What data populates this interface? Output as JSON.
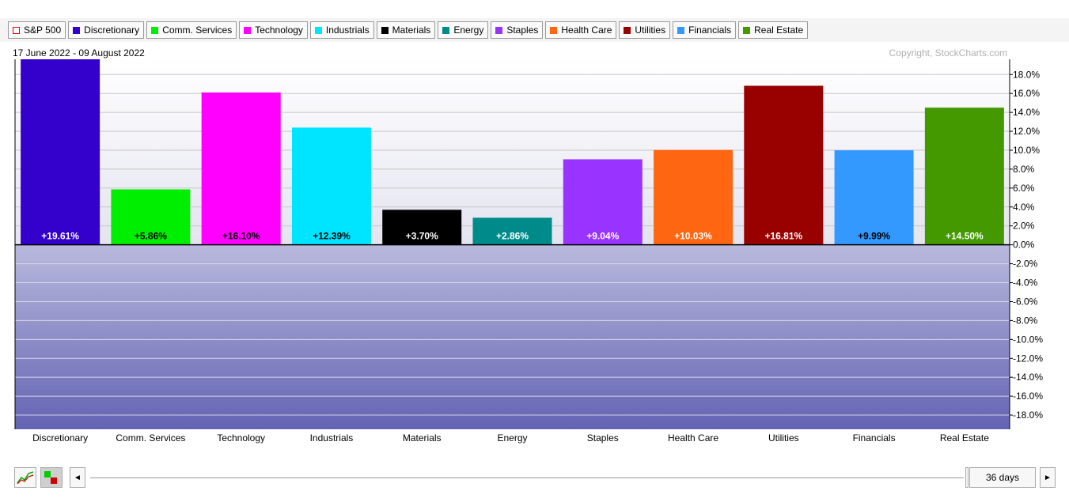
{
  "legend": [
    {
      "label": "S&P 500",
      "color": "#e60000",
      "hollow": true
    },
    {
      "label": "Discretionary",
      "color": "#3300cc",
      "hollow": false
    },
    {
      "label": "Comm. Services",
      "color": "#00ee00",
      "hollow": false
    },
    {
      "label": "Technology",
      "color": "#ff00ff",
      "hollow": false
    },
    {
      "label": "Industrials",
      "color": "#00e5ff",
      "hollow": false
    },
    {
      "label": "Materials",
      "color": "#000000",
      "hollow": false
    },
    {
      "label": "Energy",
      "color": "#008b8b",
      "hollow": false
    },
    {
      "label": "Staples",
      "color": "#9933ff",
      "hollow": false
    },
    {
      "label": "Health Care",
      "color": "#ff6611",
      "hollow": false
    },
    {
      "label": "Utilities",
      "color": "#990000",
      "hollow": false
    },
    {
      "label": "Financials",
      "color": "#3399ff",
      "hollow": false
    },
    {
      "label": "Real Estate",
      "color": "#449900",
      "hollow": false
    }
  ],
  "chart_data": {
    "type": "bar",
    "date_range": "17 June 2022 - 09 August 2022",
    "copyright": "Copyright, StockCharts.com",
    "categories": [
      "Discretionary",
      "Comm. Services",
      "Technology",
      "Industrials",
      "Materials",
      "Energy",
      "Staples",
      "Health Care",
      "Utilities",
      "Financials",
      "Real Estate"
    ],
    "values": [
      19.61,
      5.86,
      16.1,
      12.39,
      3.7,
      2.86,
      9.04,
      10.03,
      16.81,
      9.99,
      14.5
    ],
    "value_labels": [
      "+19.61%",
      "+5.86%",
      "+16.10%",
      "+12.39%",
      "+3.70%",
      "+2.86%",
      "+9.04%",
      "+10.03%",
      "+16.81%",
      "+9.99%",
      "+14.50%"
    ],
    "colors": [
      "#3300cc",
      "#00ee00",
      "#ff00ff",
      "#00e5ff",
      "#000000",
      "#008b8b",
      "#9933ff",
      "#ff6611",
      "#990000",
      "#3399ff",
      "#449900"
    ],
    "label_colors": [
      "#ffffff",
      "#000000",
      "#000000",
      "#000000",
      "#ffffff",
      "#ffffff",
      "#ffffff",
      "#ffffff",
      "#ffffff",
      "#000000",
      "#ffffff"
    ],
    "ylim": [
      -19.5,
      19.61
    ],
    "ytick_values": [
      18,
      16,
      14,
      12,
      10,
      8,
      6,
      4,
      2,
      0,
      -2,
      -4,
      -6,
      -8,
      -10,
      -12,
      -14,
      -16,
      -18
    ],
    "ytick_labels": [
      "18.0%",
      "16.0%",
      "14.0%",
      "12.0%",
      "10.0%",
      "8.0%",
      "6.0%",
      "4.0%",
      "2.0%",
      "0.0%",
      "-2.0%",
      "-4.0%",
      "-6.0%",
      "-8.0%",
      "-10.0%",
      "-12.0%",
      "-14.0%",
      "-16.0%",
      "-18.0%"
    ],
    "grid": true,
    "legend_position": "top"
  },
  "controls": {
    "days_label": "36 days",
    "left_arrow": "◄",
    "right_arrow": "►"
  }
}
